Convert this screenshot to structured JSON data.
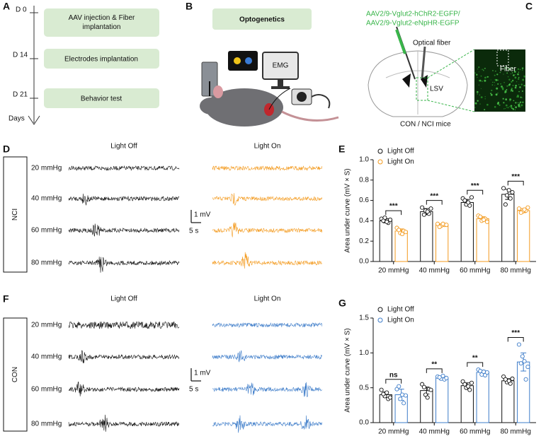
{
  "panel_labels": [
    "A",
    "B",
    "C",
    "D",
    "E",
    "F",
    "G"
  ],
  "timeline": {
    "steps": [
      {
        "day": "D 0",
        "label": "AAV injection & Fiber implantation"
      },
      {
        "day": "D 14",
        "label": "Electrodes implantation"
      },
      {
        "day": "D 21",
        "label": "Behavior test"
      }
    ],
    "axis_label": "Days"
  },
  "optogenetics": {
    "title": "Optogenetics",
    "monitor": "EMG"
  },
  "brain": {
    "virus": [
      "AAV2/9-Vglut2-hChR2-EGFP/",
      "AAV2/9-Vglut2-eNpHR-EGFP"
    ],
    "fiber_label": "Optical fiber",
    "region": "LSV",
    "inset_label": "Fiber",
    "caption": "CON / NCI mice"
  },
  "traces": [
    {
      "group": "NCI",
      "conditions": [
        "Light Off",
        "Light On"
      ],
      "colors": [
        "#111111",
        "#f39a1e"
      ],
      "pressures": [
        "20 mmHg",
        "40 mmHg",
        "60 mmHg",
        "80 mmHg"
      ],
      "scale_y": "1 mV",
      "scale_x": "5 s"
    },
    {
      "group": "CON",
      "conditions": [
        "Light Off",
        "Light On"
      ],
      "colors": [
        "#111111",
        "#3d7cc9"
      ],
      "pressures": [
        "20 mmHg",
        "40 mmHg",
        "60 mmHg",
        "80 mmHg"
      ],
      "scale_y": "1 mV",
      "scale_x": "5 s"
    }
  ],
  "chart_data": [
    {
      "type": "bar",
      "y_label": "Area under curve (mV × S)",
      "categories": [
        "20 mmHg",
        "40 mmHg",
        "60 mmHg",
        "80 mmHg"
      ],
      "ylim": [
        0,
        1.0
      ],
      "yticks": [
        {
          "value": 0,
          "label": "0.0"
        },
        0.2,
        0.4,
        0.6,
        0.8,
        {
          "value": 1.0,
          "label": "1.0"
        }
      ],
      "legend": "upper left",
      "series": [
        {
          "name": "Light Off",
          "color": "#111111",
          "values": [
            0.4,
            0.49,
            0.58,
            0.66
          ],
          "errors": [
            0.02,
            0.03,
            0.03,
            0.05
          ],
          "points": [
            [
              0.42,
              0.43,
              0.38,
              0.4,
              0.39,
              0.41
            ],
            [
              0.53,
              0.5,
              0.47,
              0.46,
              0.49,
              0.52
            ],
            [
              0.62,
              0.56,
              0.55,
              0.6,
              0.58,
              0.63
            ],
            [
              0.72,
              0.65,
              0.62,
              0.56,
              0.7,
              0.68
            ]
          ]
        },
        {
          "name": "Light On",
          "color": "#f39a1e",
          "values": [
            0.3,
            0.36,
            0.42,
            0.5
          ],
          "errors": [
            0.02,
            0.01,
            0.02,
            0.02
          ],
          "points": [
            [
              0.33,
              0.28,
              0.3,
              0.31,
              0.27,
              0.29
            ],
            [
              0.37,
              0.35,
              0.36,
              0.34,
              0.37,
              0.36
            ],
            [
              0.45,
              0.4,
              0.42,
              0.44,
              0.41,
              0.39
            ],
            [
              0.52,
              0.49,
              0.5,
              0.48,
              0.51,
              0.53
            ]
          ]
        }
      ],
      "significance": [
        "***",
        "***",
        "***",
        "***"
      ]
    },
    {
      "type": "bar",
      "y_label": "Area under curve (mV × S)",
      "categories": [
        "20 mmHg",
        "40 mmHg",
        "60 mmHg",
        "80 mmHg"
      ],
      "ylim": [
        0,
        1.5
      ],
      "yticks": [
        {
          "value": 0,
          "label": "0.0"
        },
        0.5,
        {
          "value": 1.0,
          "label": "1.0"
        },
        1.5
      ],
      "legend": "upper left",
      "series": [
        {
          "name": "Light Off",
          "color": "#111111",
          "values": [
            0.4,
            0.46,
            0.53,
            0.6
          ],
          "errors": [
            0.04,
            0.05,
            0.04,
            0.03
          ],
          "points": [
            [
              0.47,
              0.38,
              0.34,
              0.41,
              0.43,
              0.36
            ],
            [
              0.55,
              0.4,
              0.48,
              0.51,
              0.36,
              0.47
            ],
            [
              0.59,
              0.5,
              0.47,
              0.55,
              0.52,
              0.57
            ],
            [
              0.66,
              0.58,
              0.56,
              0.62,
              0.6,
              0.63
            ]
          ]
        },
        {
          "name": "Light On",
          "color": "#3d7cc9",
          "values": [
            0.4,
            0.64,
            0.72,
            0.87
          ],
          "errors": [
            0.08,
            0.02,
            0.03,
            0.13
          ],
          "points": [
            [
              0.48,
              0.34,
              0.28,
              0.52,
              0.4,
              0.39
            ],
            [
              0.66,
              0.63,
              0.62,
              0.65,
              0.67,
              0.64
            ],
            [
              0.76,
              0.69,
              0.68,
              0.74,
              0.73,
              0.72
            ],
            [
              1.12,
              0.95,
              0.62,
              0.85,
              0.88,
              0.8
            ]
          ]
        }
      ],
      "significance": [
        "ns",
        "**",
        "**",
        "***"
      ]
    }
  ]
}
